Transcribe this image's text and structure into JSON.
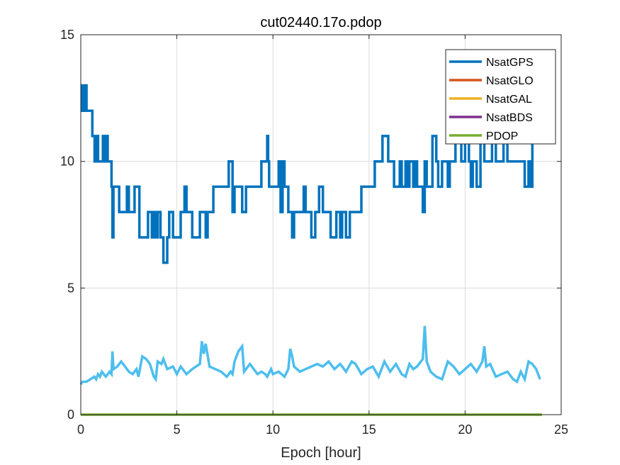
{
  "chart_data": {
    "type": "line",
    "title": "cut02440.17o.pdop",
    "xlabel": "Epoch [hour]",
    "ylabel": "",
    "xlim": [
      0,
      25
    ],
    "ylim": [
      0,
      15
    ],
    "xticks": [
      0,
      5,
      10,
      15,
      20,
      25
    ],
    "yticks": [
      0,
      5,
      10,
      15
    ],
    "xtick_labels": [
      "0",
      "5",
      "10",
      "15",
      "20",
      "25"
    ],
    "ytick_labels": [
      "0",
      "5",
      "10",
      "15"
    ],
    "grid": true,
    "legend_position": "top-right",
    "legend": [
      {
        "name": "NsatGPS",
        "color": "#0072BD"
      },
      {
        "name": "NsatGLO",
        "color": "#D95319"
      },
      {
        "name": "NsatGAL",
        "color": "#EDB120"
      },
      {
        "name": "NsatBDS",
        "color": "#7E2F8E"
      },
      {
        "name": "PDOP",
        "color": "#77AC30"
      }
    ],
    "series": [
      {
        "color": "#0072BD",
        "step": true,
        "x": [
          0.0,
          0.08,
          0.12,
          0.2,
          0.3,
          0.4,
          0.5,
          0.6,
          0.72,
          0.8,
          0.9,
          1.1,
          1.15,
          1.25,
          1.3,
          1.4,
          1.5,
          1.6,
          1.65,
          1.7,
          1.9,
          2.0,
          2.4,
          2.5,
          2.8,
          3.05,
          3.5,
          3.7,
          3.8,
          3.9,
          4.0,
          4.15,
          4.3,
          4.4,
          4.5,
          4.6,
          4.8,
          5.0,
          5.2,
          5.4,
          5.5,
          5.6,
          5.7,
          5.8,
          6.2,
          6.5,
          6.6,
          6.9,
          7.2,
          7.7,
          7.9,
          8.0,
          8.4,
          8.6,
          9.2,
          9.4,
          9.7,
          9.75,
          9.8,
          10.0,
          10.3,
          10.4,
          10.5,
          10.6,
          10.8,
          11.0,
          11.1,
          11.5,
          11.6,
          11.7,
          11.9,
          12.0,
          12.2,
          12.4,
          12.6,
          12.7,
          13.0,
          13.3,
          13.5,
          13.6,
          13.8,
          14.0,
          14.3,
          14.6,
          14.8,
          15.3,
          15.7,
          16.0,
          16.1,
          16.3,
          16.6,
          16.7,
          16.9,
          17.0,
          17.1,
          17.3,
          17.4,
          17.5,
          17.8,
          17.9,
          18.0,
          18.3,
          18.5,
          18.6,
          18.8,
          19.1,
          19.2,
          19.5,
          19.6,
          19.8,
          20.0,
          20.2,
          20.3,
          20.4,
          20.6,
          20.8,
          21.0,
          21.2,
          21.4,
          21.6,
          21.8,
          22.0,
          22.2,
          22.4,
          22.6,
          23.1,
          23.3,
          23.4,
          23.5,
          23.7
        ],
        "y": [
          12,
          13,
          12,
          13,
          12,
          12,
          12,
          11,
          10,
          11,
          10,
          10,
          11,
          10,
          11,
          10,
          10,
          9,
          7,
          9,
          9,
          8,
          9,
          8,
          9,
          7,
          8,
          7,
          8,
          7,
          8,
          7,
          6,
          6,
          7,
          8,
          7,
          7,
          8,
          9,
          8,
          8,
          8,
          7,
          8,
          7,
          8,
          9,
          9,
          10,
          8,
          9,
          8,
          9,
          9,
          10,
          11,
          10,
          9,
          9,
          10,
          8,
          10,
          9,
          8,
          7,
          8,
          8,
          9,
          8,
          8,
          7,
          8,
          9,
          8,
          8,
          7,
          8,
          7,
          8,
          7,
          8,
          8,
          9,
          9,
          10,
          11,
          10,
          10,
          9,
          10,
          9,
          10,
          9,
          10,
          9,
          10,
          9,
          8,
          10,
          9,
          11,
          10,
          9,
          10,
          9,
          10,
          11,
          12,
          10,
          11,
          10,
          9,
          10,
          9,
          11,
          10,
          10,
          11,
          10,
          10,
          11,
          10,
          10,
          10,
          9,
          10,
          9,
          11,
          11
        ]
      },
      {
        "color": "#4DBEEE",
        "step": false,
        "x": [
          0.0,
          0.1,
          0.3,
          0.5,
          0.7,
          0.8,
          0.9,
          1.0,
          1.1,
          1.3,
          1.5,
          1.6,
          1.65,
          1.7,
          1.9,
          2.1,
          2.3,
          2.5,
          2.7,
          2.9,
          3.0,
          3.2,
          3.4,
          3.6,
          3.8,
          3.9,
          4.0,
          4.2,
          4.3,
          4.5,
          4.8,
          5.0,
          5.2,
          5.5,
          5.8,
          6.0,
          6.2,
          6.3,
          6.4,
          6.5,
          6.7,
          7.0,
          7.3,
          7.6,
          7.8,
          7.9,
          8.0,
          8.2,
          8.4,
          8.5,
          8.6,
          8.8,
          9.0,
          9.2,
          9.4,
          9.6,
          9.7,
          9.9,
          10.0,
          10.3,
          10.6,
          10.8,
          10.9,
          11.0,
          11.1,
          11.4,
          11.7,
          12.0,
          12.3,
          12.6,
          12.9,
          13.2,
          13.5,
          13.8,
          14.1,
          14.3,
          14.6,
          14.9,
          15.2,
          15.5,
          15.8,
          16.1,
          16.4,
          16.7,
          16.9,
          17.1,
          17.3,
          17.5,
          17.8,
          17.9,
          18.0,
          18.2,
          18.5,
          18.8,
          19.1,
          19.4,
          19.7,
          20.0,
          20.3,
          20.6,
          20.9,
          21.0,
          21.1,
          21.3,
          21.6,
          21.9,
          22.2,
          22.5,
          22.7,
          22.9,
          23.1,
          23.3,
          23.5,
          23.7,
          23.9
        ],
        "y": [
          1.2,
          1.3,
          1.3,
          1.4,
          1.5,
          1.4,
          1.6,
          1.5,
          1.7,
          1.5,
          1.7,
          1.6,
          2.5,
          1.8,
          1.9,
          2.1,
          1.9,
          1.7,
          1.6,
          1.8,
          1.5,
          2.3,
          2.2,
          2.0,
          1.5,
          1.4,
          2.1,
          2.0,
          2.2,
          1.8,
          1.9,
          1.6,
          1.9,
          1.6,
          1.8,
          1.9,
          2.0,
          2.9,
          2.4,
          2.8,
          1.9,
          1.8,
          1.7,
          1.5,
          1.7,
          1.6,
          2.1,
          2.5,
          2.7,
          1.7,
          1.8,
          2.0,
          1.8,
          1.6,
          1.7,
          1.6,
          1.5,
          1.8,
          1.6,
          1.7,
          1.5,
          1.8,
          2.6,
          2.3,
          1.9,
          1.7,
          1.8,
          1.9,
          2.0,
          1.9,
          2.1,
          1.8,
          2.0,
          1.7,
          2.1,
          2.0,
          1.6,
          1.8,
          1.9,
          1.5,
          2.1,
          1.7,
          2.0,
          1.6,
          1.5,
          2.0,
          1.8,
          1.9,
          2.2,
          3.5,
          2.1,
          1.7,
          1.5,
          1.4,
          2.1,
          1.9,
          1.6,
          1.8,
          2.0,
          1.7,
          2.1,
          2.7,
          1.9,
          2.0,
          1.5,
          1.6,
          1.7,
          1.4,
          1.3,
          1.7,
          1.4,
          2.1,
          2.0,
          1.8,
          1.4
        ]
      },
      {
        "color": "#77AC30",
        "step": false,
        "x": [
          0,
          24
        ],
        "y": [
          0,
          0
        ]
      }
    ]
  }
}
